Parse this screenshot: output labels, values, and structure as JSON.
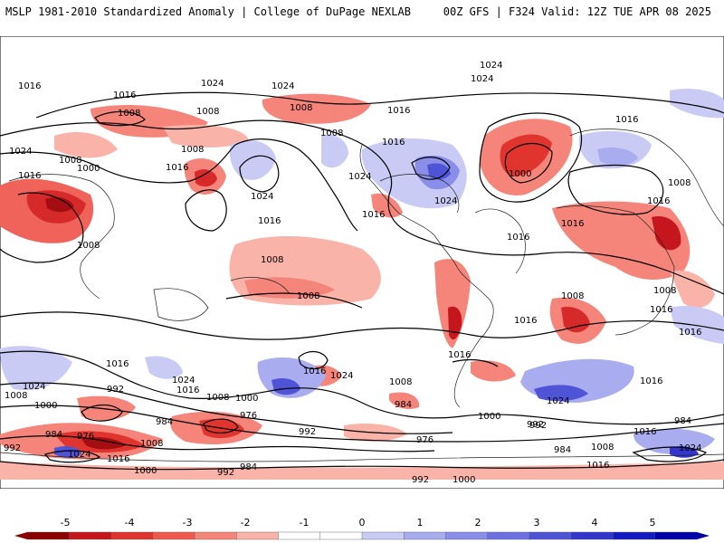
{
  "header": {
    "left_title": "MSLP 1981-2010 Standardized Anomaly | College of DuPage NEXLAB",
    "right_title": "00Z GFS | F324 Valid: 12Z TUE APR 08 2025"
  },
  "map": {
    "projection": "global cylindrical",
    "contour_interval_hpa": 8,
    "contour_labels": [
      "1024",
      "1024",
      "1024",
      "1016",
      "1008",
      "1008",
      "1016",
      "1024",
      "1024",
      "1016",
      "1008",
      "1000",
      "1008",
      "1016",
      "1008",
      "1024",
      "1016",
      "1016",
      "1008",
      "1016",
      "1024",
      "1016",
      "1000",
      "1024",
      "1016",
      "1016",
      "1008",
      "1016",
      "1016",
      "1008",
      "1008",
      "1008",
      "1008",
      "1008",
      "1016",
      "1016",
      "1016",
      "1024",
      "1024",
      "1016",
      "1024",
      "1016",
      "1016",
      "1008",
      "1008",
      "1000",
      "992",
      "1000",
      "1016",
      "984",
      "992",
      "1000",
      "1008",
      "992",
      "984",
      "976",
      "984",
      "992",
      "976",
      "984",
      "976",
      "1024",
      "1016",
      "1008",
      "984",
      "992",
      "1016",
      "984",
      "992",
      "1000",
      "1024",
      "1016",
      "992",
      "1008",
      "1000",
      "1024",
      "1016"
    ]
  },
  "colorbar": {
    "labels": [
      "-5",
      "-4",
      "-3",
      "-2",
      "-1",
      "0",
      "1",
      "2",
      "3",
      "4",
      "5"
    ],
    "colors": [
      "#8b0000",
      "#c4161c",
      "#e0352e",
      "#ef5a4f",
      "#f5857a",
      "#fab3a9",
      "#ffffff",
      "#ffffff",
      "#c9cbf5",
      "#a9acef",
      "#8a8ee9",
      "#6c70e0",
      "#4f53d6",
      "#3236cc",
      "#1419c0",
      "#0000a8"
    ]
  }
}
